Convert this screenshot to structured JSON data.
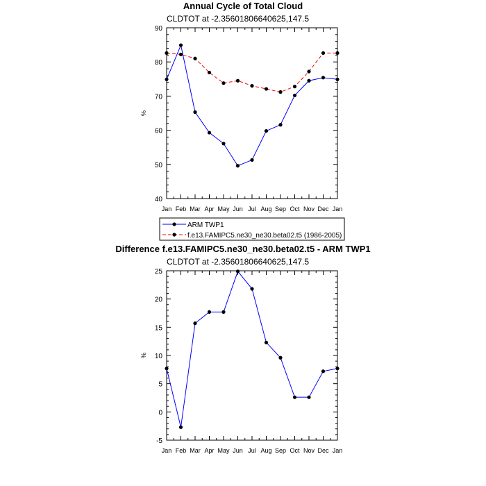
{
  "chart_data": [
    {
      "type": "line",
      "title": "Annual Cycle of Total Cloud",
      "subtitle": "CLDTOT at -2.35601806640625,147.5",
      "ylabel": "%",
      "xlabel": "",
      "categories": [
        "Jan",
        "Feb",
        "Mar",
        "Apr",
        "May",
        "Jun",
        "Jul",
        "Aug",
        "Sep",
        "Oct",
        "Nov",
        "Dec",
        "Jan"
      ],
      "ylim": [
        40,
        90
      ],
      "yticks": [
        "40",
        "50",
        "60",
        "70",
        "80",
        "90"
      ],
      "series": [
        {
          "name": "ARM TWP1",
          "color": "#0000ff",
          "dash": "solid",
          "values": [
            74.9,
            84.9,
            65.3,
            59.3,
            56.1,
            49.6,
            51.3,
            59.8,
            61.6,
            70.2,
            74.5,
            75.4,
            74.9
          ]
        },
        {
          "name": "f.e13.FAMIPC5.ne30_ne30.beta02.t5 (1986-2005)",
          "color": "#ff0000",
          "dash": "dashed",
          "values": [
            82.6,
            82.2,
            81.0,
            76.9,
            73.8,
            74.5,
            73.0,
            72.1,
            71.2,
            72.8,
            77.2,
            82.6,
            82.6
          ]
        }
      ]
    },
    {
      "type": "line",
      "title": "Difference f.e13.FAMIPC5.ne30_ne30.beta02.t5 - ARM TWP1",
      "subtitle": "CLDTOT at -2.35601806640625,147.5",
      "ylabel": "%",
      "xlabel": "",
      "categories": [
        "Jan",
        "Feb",
        "Mar",
        "Apr",
        "May",
        "Jun",
        "Jul",
        "Aug",
        "Sep",
        "Oct",
        "Nov",
        "Dec",
        "Jan"
      ],
      "ylim": [
        -5,
        25
      ],
      "yticks": [
        "-5",
        "0",
        "5",
        "10",
        "15",
        "20",
        "25"
      ],
      "series": [
        {
          "name": "Difference",
          "color": "#0000ff",
          "dash": "solid",
          "values": [
            7.7,
            -2.7,
            15.7,
            17.7,
            17.7,
            24.9,
            21.8,
            12.3,
            9.6,
            2.6,
            2.6,
            7.2,
            7.7
          ]
        }
      ]
    }
  ]
}
